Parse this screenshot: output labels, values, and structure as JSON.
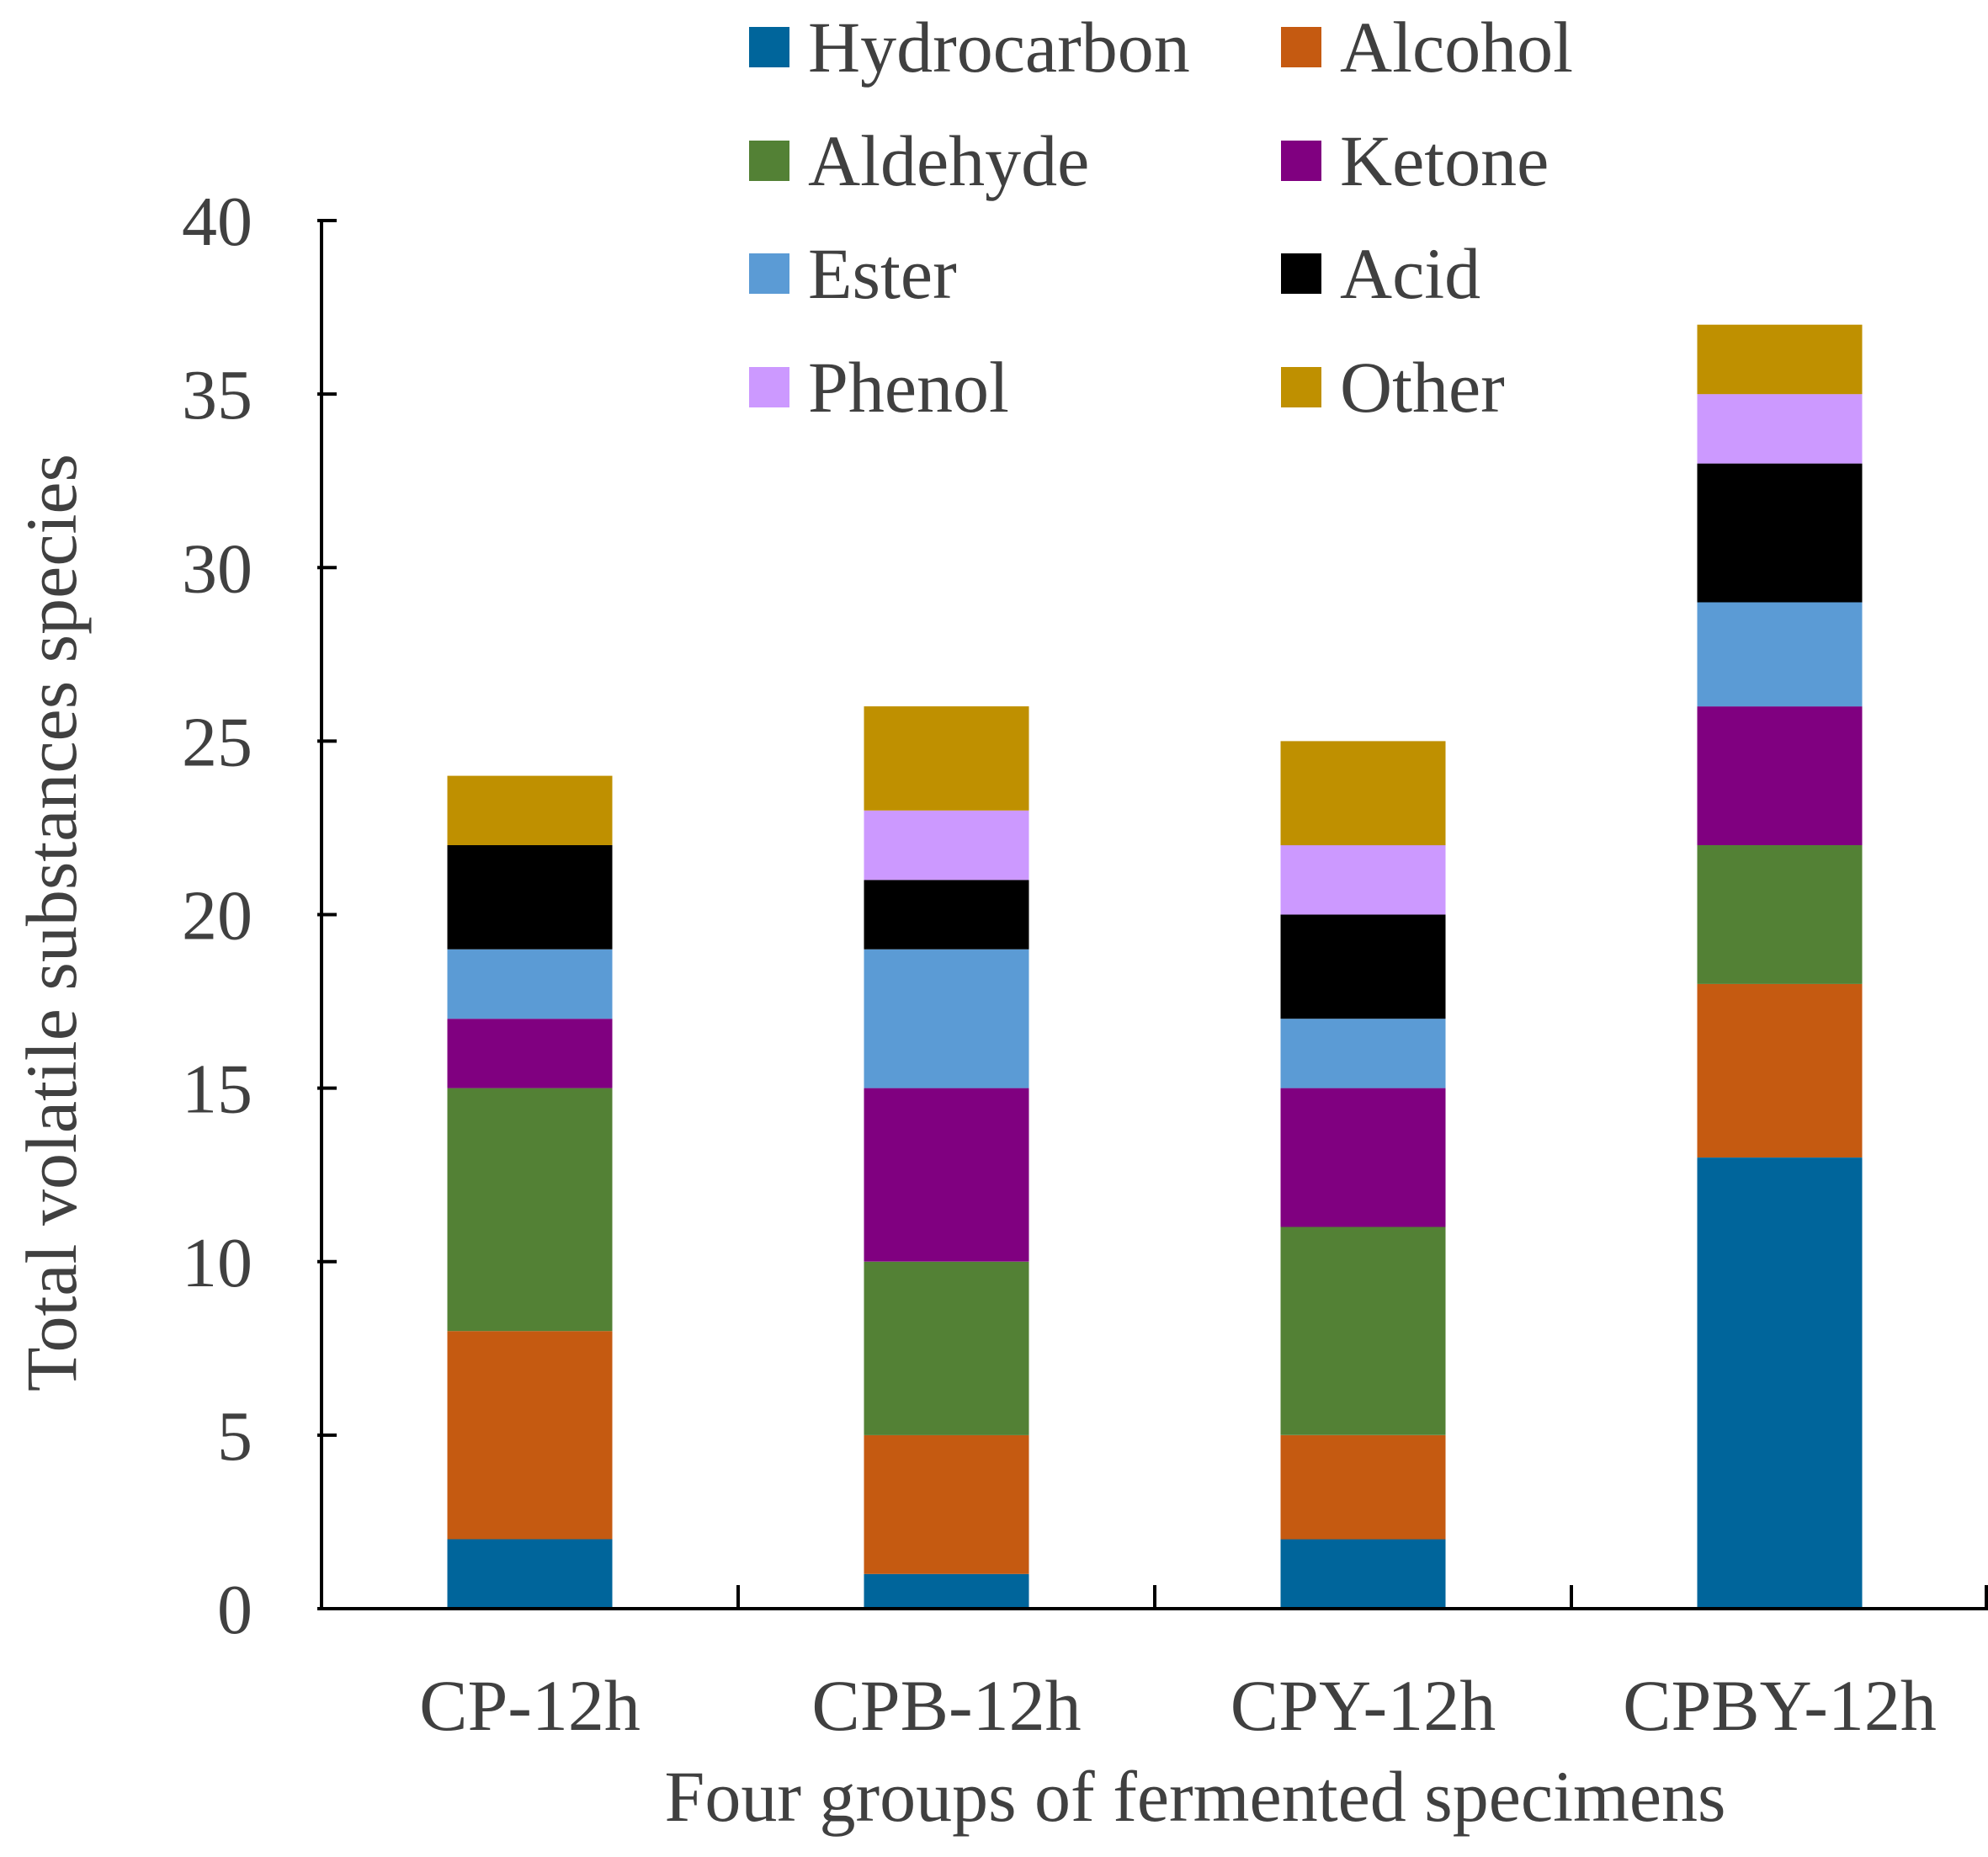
{
  "chart_data": {
    "type": "bar",
    "stacked": true,
    "title": "",
    "xlabel": "Four groups of fermented specimens",
    "ylabel": "Total volatile substances species",
    "ylim": [
      0,
      40
    ],
    "yticks": [
      0,
      5,
      10,
      15,
      20,
      25,
      30,
      35,
      40
    ],
    "ytick_labels": [
      "0",
      "5",
      "10",
      "15",
      "20",
      "25",
      "30",
      "35",
      "40"
    ],
    "grid": false,
    "legend_position": "top",
    "categories": [
      "CP-12h",
      "CPB-12h",
      "CPY-12h",
      "CPBY-12h"
    ],
    "series": [
      {
        "name": "Hydrocarbon",
        "color": "#00659B",
        "values": [
          2,
          1,
          2,
          13
        ]
      },
      {
        "name": "Alcohol",
        "color": "#C55A11",
        "values": [
          6,
          4,
          3,
          5
        ]
      },
      {
        "name": "Aldehyde",
        "color": "#538135",
        "values": [
          7,
          5,
          6,
          4
        ]
      },
      {
        "name": "Ketone",
        "color": "#800080",
        "values": [
          2,
          5,
          4,
          4
        ]
      },
      {
        "name": "Ester",
        "color": "#5B9BD5",
        "values": [
          2,
          4,
          2,
          3
        ]
      },
      {
        "name": "Acid",
        "color": "#000000",
        "values": [
          3,
          2,
          3,
          4
        ]
      },
      {
        "name": "Phenol",
        "color": "#CC99FF",
        "values": [
          0,
          2,
          2,
          2
        ]
      },
      {
        "name": "Other",
        "color": "#BF9000",
        "values": [
          2,
          3,
          3,
          2
        ]
      }
    ]
  }
}
